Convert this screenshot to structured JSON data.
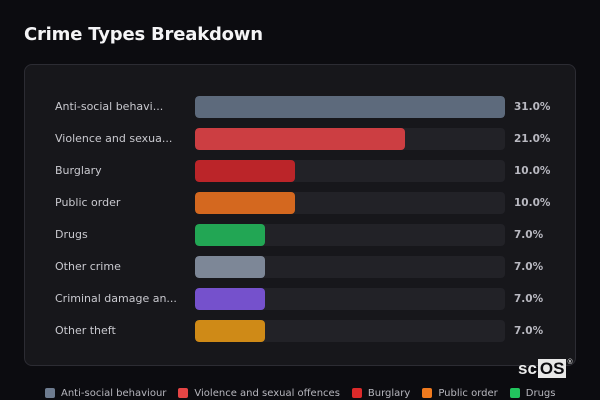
{
  "header": {
    "title": "Crime Types Breakdown"
  },
  "chart_data": {
    "type": "bar",
    "orientation": "horizontal",
    "title": "Crime Types Breakdown",
    "categories": [
      "Anti-social behaviour",
      "Violence and sexual offences",
      "Burglary",
      "Public order",
      "Drugs",
      "Other crime",
      "Criminal damage and arson",
      "Other theft"
    ],
    "display_labels": [
      "Anti-social behavi...",
      "Violence and sexua...",
      "Burglary",
      "Public order",
      "Drugs",
      "Other crime",
      "Criminal damage an...",
      "Other theft"
    ],
    "values": [
      31.0,
      21.0,
      10.0,
      10.0,
      7.0,
      7.0,
      7.0,
      7.0
    ],
    "value_labels": [
      "31.0%",
      "21.0%",
      "10.0%",
      "10.0%",
      "7.0%",
      "7.0%",
      "7.0%",
      "7.0%"
    ],
    "colors": [
      "#5d6a7c",
      "#cc3e42",
      "#bb2529",
      "#d4681f",
      "#22a654",
      "#7d8797",
      "#7551cc",
      "#cf8a17"
    ],
    "unit": "%",
    "xlim": [
      0,
      31
    ],
    "grid": false,
    "legend_position": "bottom",
    "legend": [
      {
        "label": "Anti-social behaviour",
        "color": "#6e7c90"
      },
      {
        "label": "Violence and sexual offences",
        "color": "#e54545"
      },
      {
        "label": "Burglary",
        "color": "#dc2a2a"
      },
      {
        "label": "Public order",
        "color": "#f07a1e"
      },
      {
        "label": "Drugs",
        "color": "#22c55e"
      }
    ]
  },
  "watermark": {
    "plain": "sc",
    "boxed": "OS",
    "mark": "®"
  }
}
